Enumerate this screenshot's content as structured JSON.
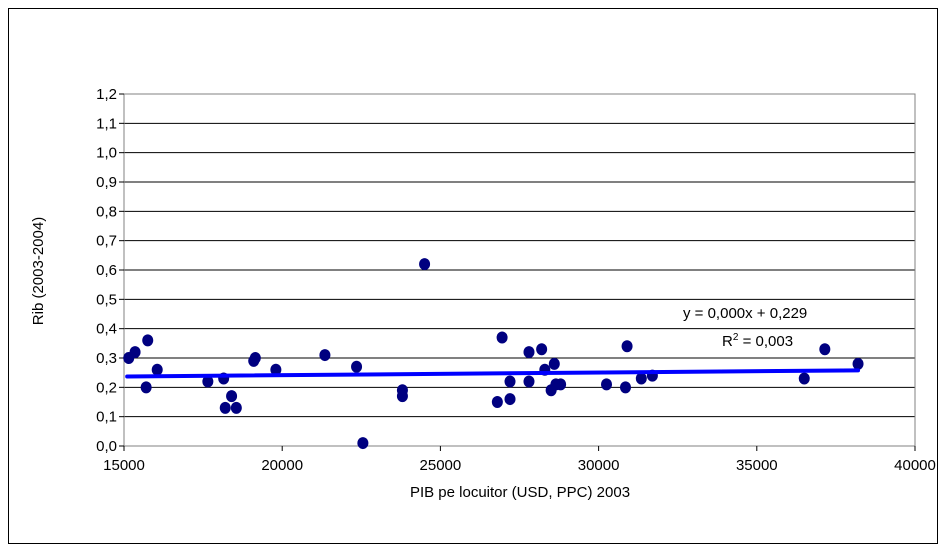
{
  "chart_data": {
    "type": "scatter",
    "title": "",
    "xlabel": "PIB pe locuitor (USD, PPC) 2003",
    "ylabel": "Rib (2003-2004)",
    "xlim": [
      15000,
      40000
    ],
    "ylim": [
      0,
      1.2
    ],
    "x_ticks": [
      "15000",
      "20000",
      "25000",
      "30000",
      "35000",
      "40000"
    ],
    "x_tick_values": [
      15000,
      20000,
      25000,
      30000,
      35000,
      40000
    ],
    "y_ticks": [
      "0,0",
      "0,1",
      "0,2",
      "0,3",
      "0,4",
      "0,5",
      "0,6",
      "0,7",
      "0,8",
      "0,9",
      "1,0",
      "1,1",
      "1,2"
    ],
    "y_tick_values": [
      0,
      0.1,
      0.2,
      0.3,
      0.4,
      0.5,
      0.6,
      0.7,
      0.8,
      0.9,
      1.0,
      1.1,
      1.2
    ],
    "grid": "horizontal",
    "point_color": "#000080",
    "trendline_color": "#0000ff",
    "trendline": {
      "equation": "y = 0,000x + 0,229",
      "r2_label": "R",
      "r2_sup": "2",
      "r2_value": " = 0,003",
      "x_start": 15100,
      "y_start": 0.237,
      "x_end": 38200,
      "y_end": 0.258
    },
    "points": [
      {
        "x": 15150,
        "y": 0.3
      },
      {
        "x": 15350,
        "y": 0.32
      },
      {
        "x": 15750,
        "y": 0.36
      },
      {
        "x": 15700,
        "y": 0.2
      },
      {
        "x": 16050,
        "y": 0.26
      },
      {
        "x": 17650,
        "y": 0.22
      },
      {
        "x": 18150,
        "y": 0.23
      },
      {
        "x": 18200,
        "y": 0.13
      },
      {
        "x": 18400,
        "y": 0.17
      },
      {
        "x": 18550,
        "y": 0.13
      },
      {
        "x": 19100,
        "y": 0.29
      },
      {
        "x": 19150,
        "y": 0.3
      },
      {
        "x": 19800,
        "y": 0.26
      },
      {
        "x": 21350,
        "y": 0.31
      },
      {
        "x": 22350,
        "y": 0.27
      },
      {
        "x": 22550,
        "y": 0.01
      },
      {
        "x": 23800,
        "y": 0.19
      },
      {
        "x": 23800,
        "y": 0.17
      },
      {
        "x": 24500,
        "y": 0.62
      },
      {
        "x": 26800,
        "y": 0.15
      },
      {
        "x": 26950,
        "y": 0.37
      },
      {
        "x": 27200,
        "y": 0.22
      },
      {
        "x": 27200,
        "y": 0.16
      },
      {
        "x": 27800,
        "y": 0.32
      },
      {
        "x": 27800,
        "y": 0.22
      },
      {
        "x": 28200,
        "y": 0.33
      },
      {
        "x": 28300,
        "y": 0.26
      },
      {
        "x": 28500,
        "y": 0.19
      },
      {
        "x": 28600,
        "y": 0.28
      },
      {
        "x": 28650,
        "y": 0.21
      },
      {
        "x": 28800,
        "y": 0.21
      },
      {
        "x": 30250,
        "y": 0.21
      },
      {
        "x": 30850,
        "y": 0.2
      },
      {
        "x": 30900,
        "y": 0.34
      },
      {
        "x": 31350,
        "y": 0.23
      },
      {
        "x": 31700,
        "y": 0.24
      },
      {
        "x": 36500,
        "y": 0.23
      },
      {
        "x": 37150,
        "y": 0.33
      },
      {
        "x": 38200,
        "y": 0.28
      }
    ]
  }
}
